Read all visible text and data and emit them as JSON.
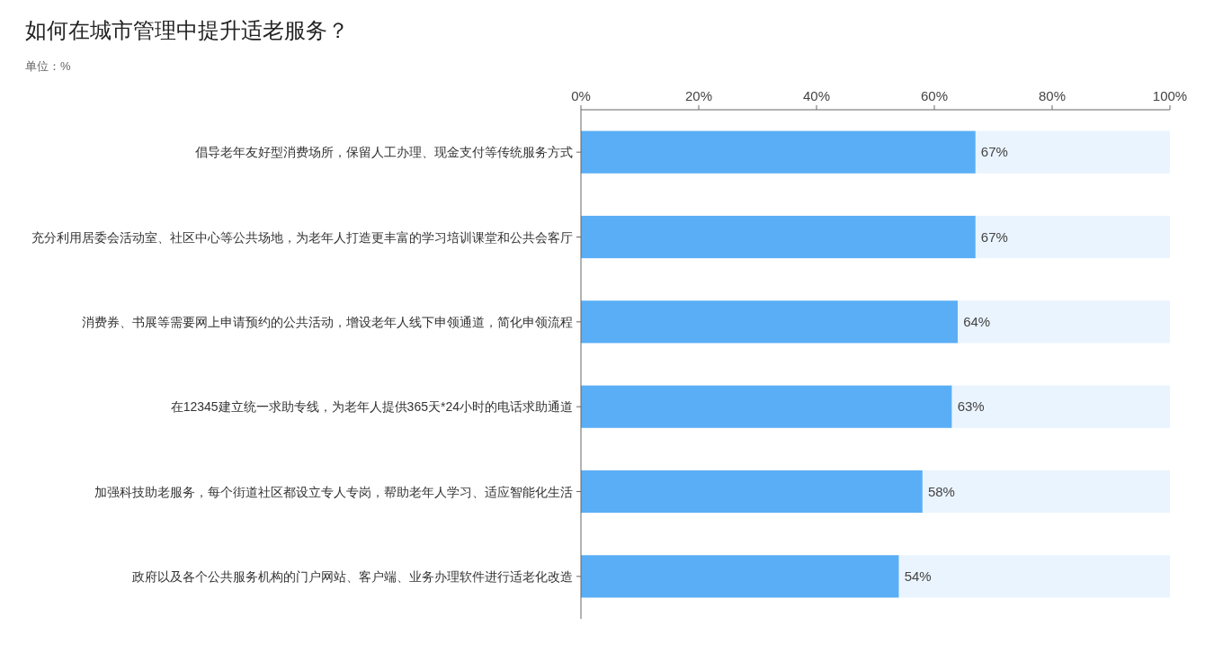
{
  "chart_data": {
    "type": "bar",
    "orientation": "horizontal",
    "stacked": true,
    "title": "如何在城市管理中提升适老服务？",
    "subtitle": "单位：%",
    "categories": [
      "倡导老年友好型消费场所，保留人工办理、现金支付等传统服务方式",
      "充分利用居委会活动室、社区中心等公共场地，为老年人打造更丰富的学习培训课堂和公共会客厅",
      "消费券、书展等需要网上申请预约的公共活动，增设老年人线下申领通道，简化申领流程",
      "在12345建立统一求助专线，为老年人提供365天*24小时的电话求助通道",
      "加强科技助老服务，每个街道社区都设立专人专岗，帮助老年人学习、适应智能化生活",
      "政府以及各个公共服务机构的门户网站、客户端、业务办理软件进行适老化改造"
    ],
    "series": [
      {
        "color": "#5aaef5",
        "values": [
          67,
          67,
          64,
          63,
          58,
          54
        ],
        "value_labels": [
          "67%",
          "67%",
          "64%",
          "63%",
          "58%",
          "54%"
        ]
      },
      {
        "color": "#eaf4fe",
        "values": [
          33,
          33,
          36,
          37,
          42,
          46
        ]
      }
    ],
    "xlim": [
      0,
      100
    ],
    "xticks": [
      {
        "value": 0,
        "label": "0%"
      },
      {
        "value": 20,
        "label": "20%"
      },
      {
        "value": 40,
        "label": "40%"
      },
      {
        "value": 60,
        "label": "60%"
      },
      {
        "value": 80,
        "label": "80%"
      },
      {
        "value": 100,
        "label": "100%"
      }
    ]
  }
}
